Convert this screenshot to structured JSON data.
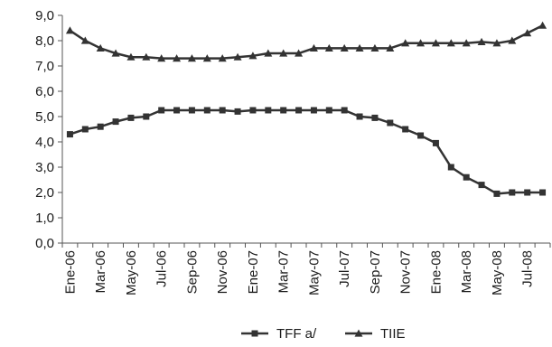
{
  "chart_data": {
    "type": "line",
    "title": "",
    "xlabel": "",
    "ylabel": "",
    "ylim": [
      0,
      9
    ],
    "yticks": [
      "0,0",
      "1,0",
      "2,0",
      "3,0",
      "4,0",
      "5,0",
      "6,0",
      "7,0",
      "8,0",
      "9,0"
    ],
    "categories": [
      "Ene-06",
      "Feb-06",
      "Mar-06",
      "Abr-06",
      "May-06",
      "Jun-06",
      "Jul-06",
      "Ago-06",
      "Sep-06",
      "Oct-06",
      "Nov-06",
      "Dic-06",
      "Ene-07",
      "Feb-07",
      "Mar-07",
      "Abr-07",
      "May-07",
      "Jun-07",
      "Jul-07",
      "Ago-07",
      "Sep-07",
      "Oct-07",
      "Nov-07",
      "Dic-07",
      "Ene-08",
      "Feb-08",
      "Mar-08",
      "Abr-08",
      "May-08",
      "Jun-08",
      "Jul-08",
      "Ago-08"
    ],
    "xtick_labels": [
      "Ene-06",
      "Mar-06",
      "May-06",
      "Jul-06",
      "Sep-06",
      "Nov-06",
      "Ene-07",
      "Mar-07",
      "May-07",
      "Jul-07",
      "Sep-07",
      "Nov-07",
      "Ene-08",
      "Mar-08",
      "May-08",
      "Jul-08"
    ],
    "grid": false,
    "legend_position": "bottom-center",
    "series": [
      {
        "name": "TFF a/",
        "marker": "square",
        "color": "#333333",
        "values": [
          4.3,
          4.5,
          4.6,
          4.8,
          4.95,
          5.0,
          5.25,
          5.25,
          5.25,
          5.25,
          5.25,
          5.2,
          5.25,
          5.25,
          5.25,
          5.25,
          5.25,
          5.25,
          5.25,
          5.0,
          4.95,
          4.75,
          4.5,
          4.25,
          3.95,
          3.0,
          2.6,
          2.3,
          1.95,
          2.0,
          2.0,
          2.0
        ]
      },
      {
        "name": "TIIE",
        "marker": "triangle",
        "color": "#333333",
        "values": [
          8.4,
          8.0,
          7.7,
          7.5,
          7.35,
          7.35,
          7.3,
          7.3,
          7.3,
          7.3,
          7.3,
          7.35,
          7.4,
          7.5,
          7.5,
          7.5,
          7.7,
          7.7,
          7.7,
          7.7,
          7.7,
          7.7,
          7.9,
          7.9,
          7.9,
          7.9,
          7.9,
          7.95,
          7.9,
          8.0,
          8.3,
          8.6
        ]
      }
    ]
  }
}
